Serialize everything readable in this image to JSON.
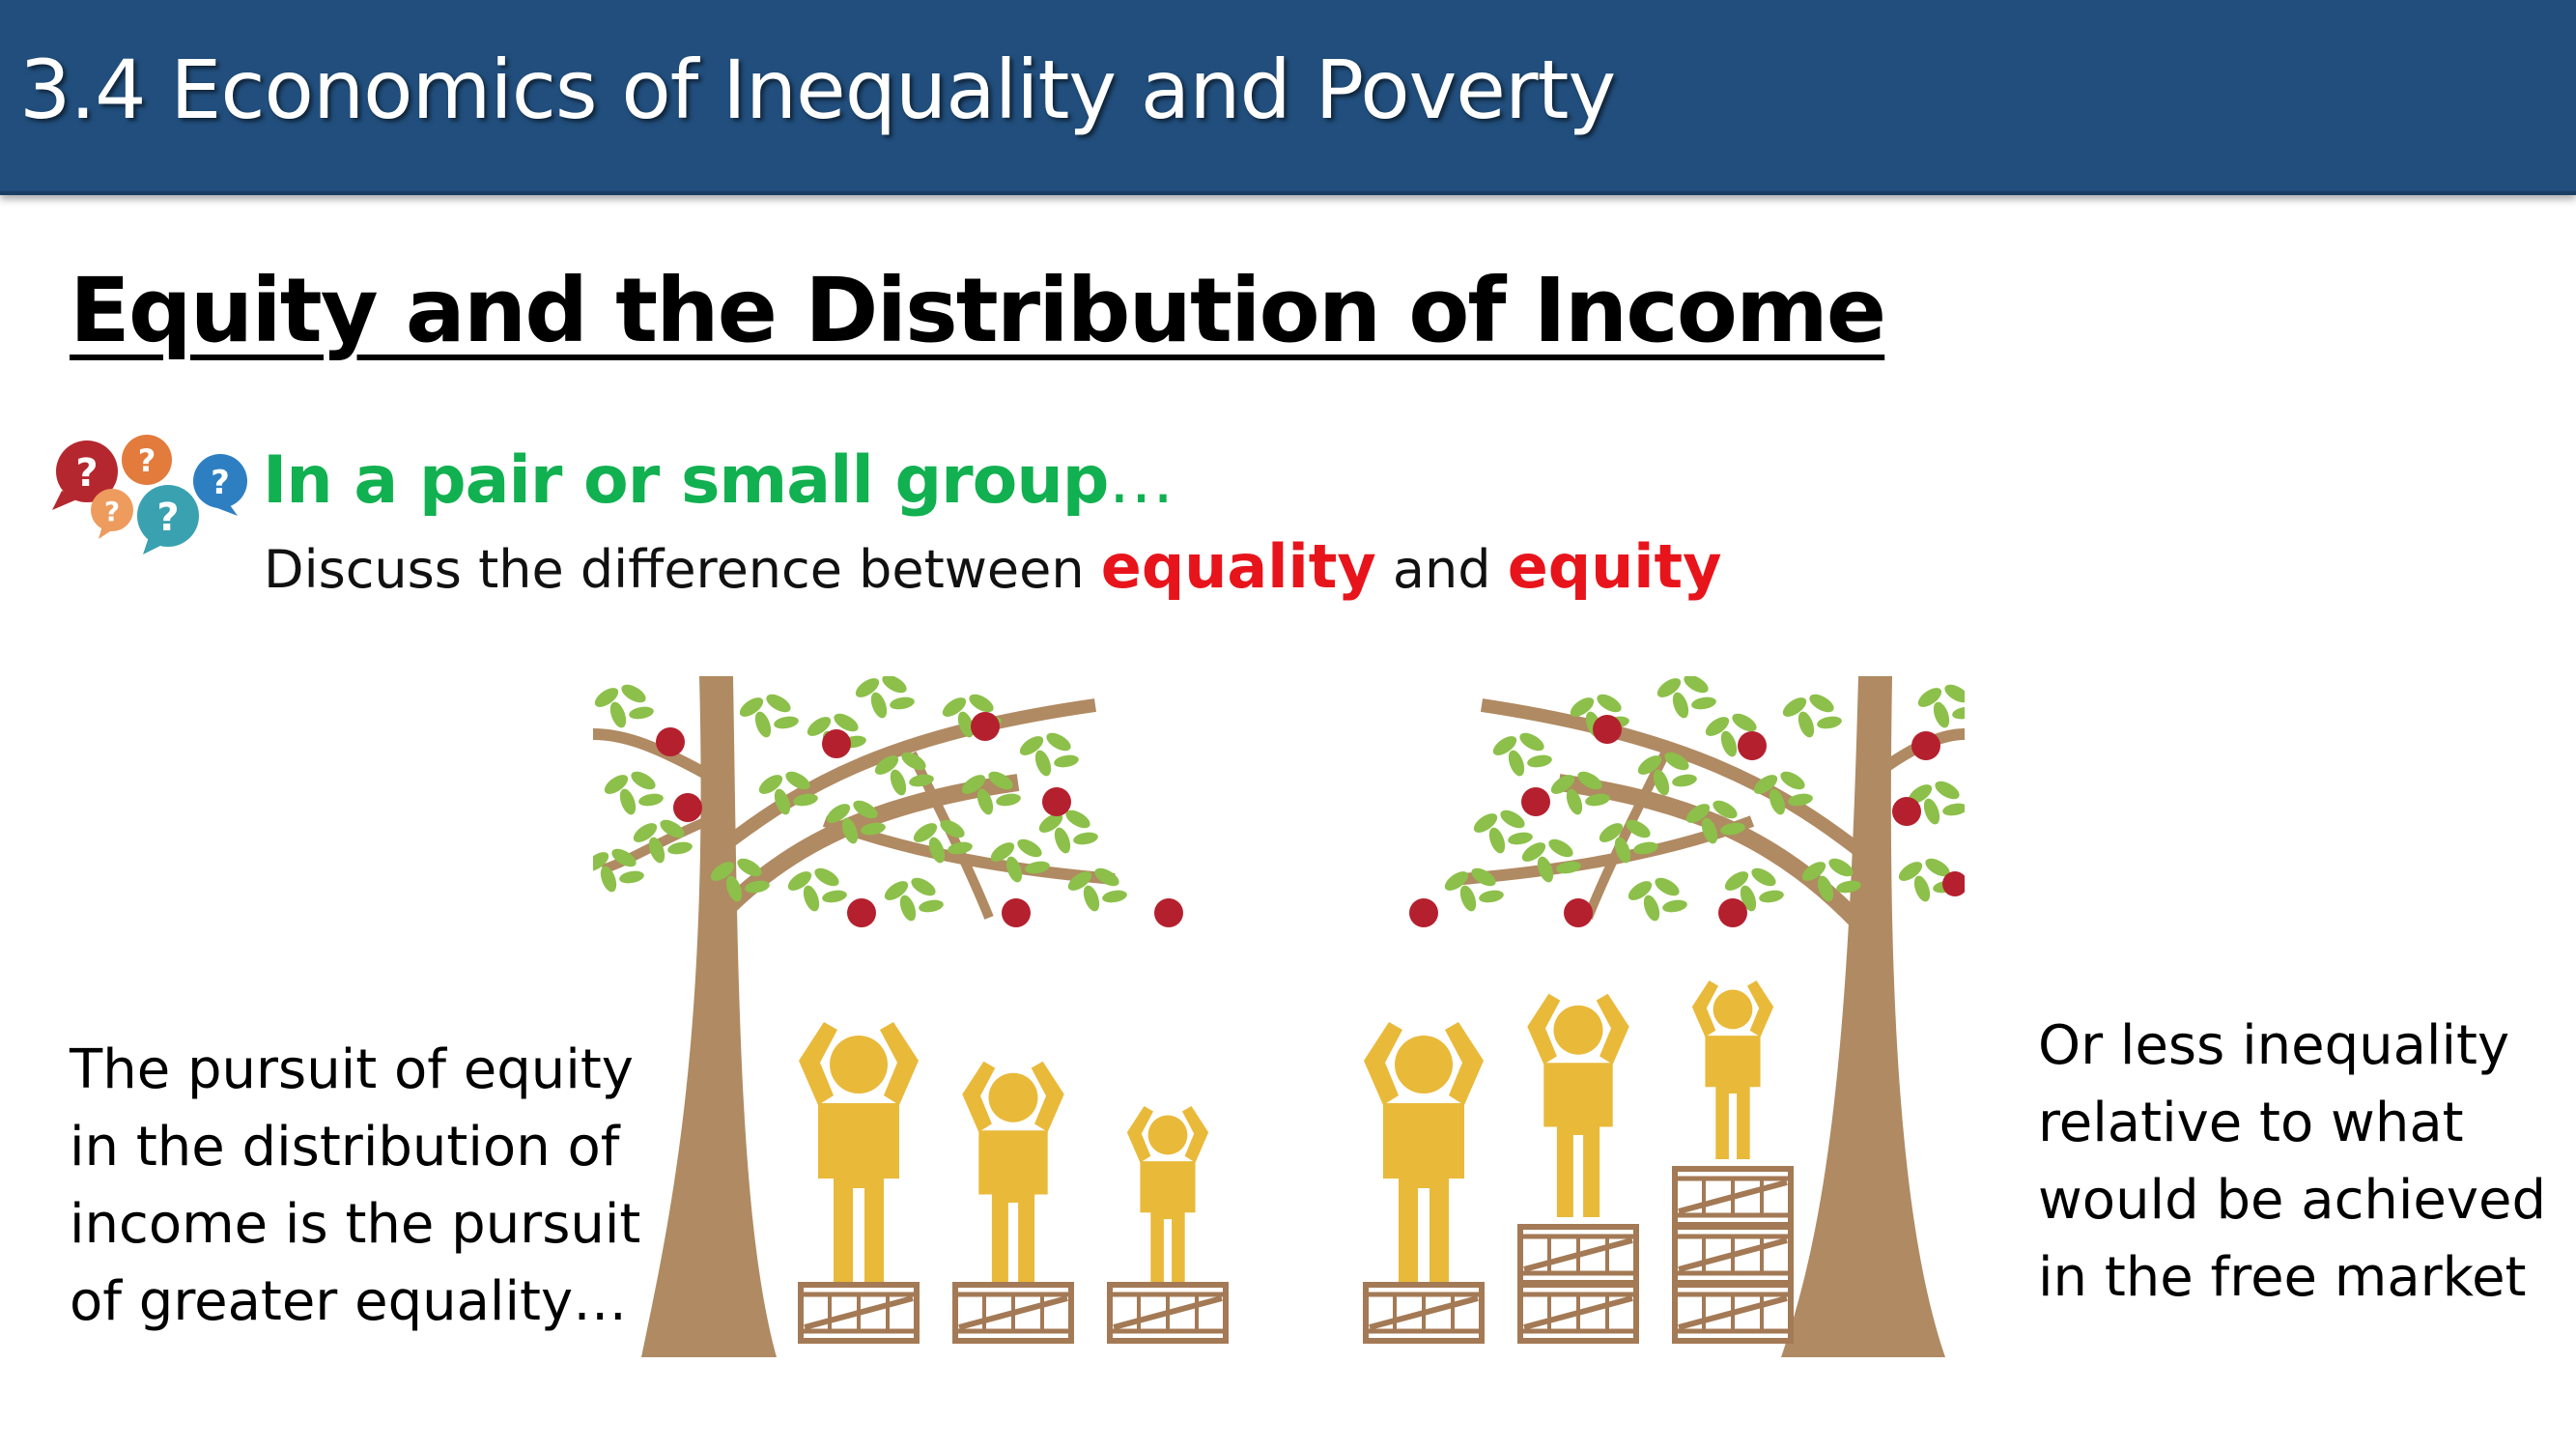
{
  "header": {
    "title": "3.4 Economics of Inequality and Poverty"
  },
  "slide": {
    "subtitle": "Equity and the Distribution of Income",
    "task": {
      "heading": "In a pair or small group",
      "heading_suffix": "…",
      "prefix": "Discuss the difference between ",
      "keyword1": "equality",
      "joiner": " and ",
      "keyword2": "equity"
    },
    "left_text": "The pursuit of equity in the distribution of income is the pursuit of greater equality…",
    "right_text": "Or less inequality relative to what would be achieved in the free market"
  },
  "icons": {
    "discussion": "speech-bubbles-question-icon",
    "bubble_glyph": "?"
  },
  "colors": {
    "header_bg": "#214e7c",
    "accent_green": "#11b050",
    "keyword_red": "#e8141b",
    "trunk": "#b08a62",
    "leaf": "#8cc04a",
    "apple": "#b5202e",
    "person": "#e9b93a",
    "crate": "#a37a55"
  }
}
